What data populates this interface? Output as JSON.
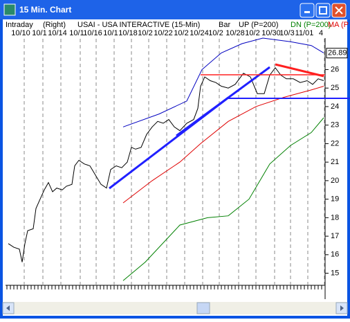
{
  "window": {
    "title": "15 Min. Chart"
  },
  "header": {
    "items": [
      "Intraday",
      "(Right)",
      "USAI - USA INTERACTIVE  (15-Min)",
      "Bar",
      "UP (P=200)",
      "DN (P=200)",
      "MA (P"
    ],
    "dates": [
      "10/10",
      "10/1",
      "10/14",
      "10/1",
      "10/16",
      "10/1",
      "10/18",
      "10/2",
      "10/22",
      "10/2",
      "10/24",
      "10/2",
      "10/28",
      "10/2",
      "10/30",
      "10/3",
      "11/01",
      "4"
    ]
  },
  "chart_data": {
    "type": "line",
    "xlim": [
      0,
      230
    ],
    "ylim": [
      13.6,
      27.7
    ],
    "yticks": [
      15,
      16,
      17,
      18,
      19,
      20,
      21,
      22,
      23,
      24,
      25,
      26
    ],
    "last_value": 26.89,
    "series": [
      {
        "color": "#000000",
        "x": [
          1,
          5,
          9,
          11,
          13,
          15,
          19,
          21,
          24,
          27,
          30,
          33,
          36,
          40,
          43,
          47,
          49,
          52,
          56,
          60,
          64,
          68,
          72,
          75,
          79,
          83,
          87,
          90,
          93,
          97,
          101,
          105,
          109,
          113,
          117,
          121,
          125,
          130,
          135,
          138,
          140,
          143,
          147,
          151,
          155,
          160,
          165,
          171,
          176,
          181,
          186,
          190,
          194,
          198,
          202,
          207,
          212,
          217,
          221,
          225,
          229
        ],
        "values": [
          16.6,
          16.4,
          16.3,
          15.6,
          16.6,
          17.3,
          17.4,
          18.5,
          19.0,
          19.5,
          19.9,
          19.4,
          19.6,
          19.5,
          19.7,
          19.8,
          20.8,
          21.1,
          20.9,
          20.8,
          20.3,
          19.8,
          19.6,
          20.6,
          20.8,
          20.7,
          21.0,
          21.8,
          21.7,
          21.8,
          22.5,
          22.9,
          23.2,
          23.1,
          23.3,
          22.9,
          22.7,
          23.1,
          23.3,
          23.9,
          25.1,
          25.6,
          25.4,
          25.3,
          25.1,
          25.0,
          25.2,
          25.8,
          25.6,
          24.7,
          24.7,
          25.7,
          26.1,
          25.7,
          25.5,
          25.5,
          25.3,
          25.4,
          25.2,
          25.5,
          25.4
        ]
      },
      {
        "color": "#0000c0",
        "x": [
          84,
          110,
          130,
          141,
          155,
          170,
          185,
          205,
          220,
          229
        ],
        "values": [
          22.9,
          23.6,
          24.3,
          26.0,
          26.9,
          27.4,
          27.7,
          27.5,
          27.3,
          26.9
        ]
      },
      {
        "color": "#e00000",
        "x": [
          84,
          105,
          125,
          140,
          160,
          180,
          200,
          220,
          229
        ],
        "values": [
          18.8,
          20,
          21,
          22,
          23.2,
          24,
          24.5,
          24.9,
          25.1
        ]
      },
      {
        "color": "#008000",
        "x": [
          84,
          100,
          125,
          145,
          160,
          175,
          190,
          205,
          220,
          229
        ],
        "values": [
          14.6,
          15.6,
          17.6,
          18.0,
          18.1,
          19,
          20.9,
          21.9,
          22.6,
          23.4
        ]
      }
    ]
  }
}
